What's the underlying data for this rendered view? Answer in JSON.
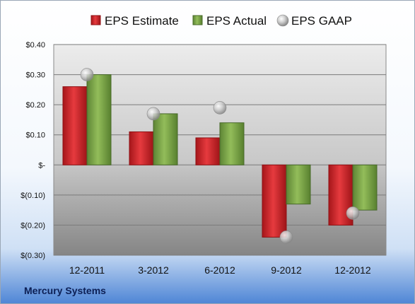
{
  "company": "Mercury Systems",
  "colors": {
    "estimate": "#d7262a",
    "estimate_dark": "#8f1114",
    "actual": "#7aa447",
    "actual_dark": "#48692a",
    "gaap": "#c5c5c5"
  },
  "chart_data": {
    "type": "bar",
    "title": "",
    "xlabel": "",
    "ylabel": "",
    "categories": [
      "12-2011",
      "3-2012",
      "6-2012",
      "9-2012",
      "12-2012"
    ],
    "series": [
      {
        "name": "EPS Estimate",
        "kind": "bar",
        "values": [
          0.26,
          0.11,
          0.09,
          -0.24,
          -0.2
        ]
      },
      {
        "name": "EPS Actual",
        "kind": "bar",
        "values": [
          0.3,
          0.17,
          0.14,
          -0.13,
          -0.15
        ]
      },
      {
        "name": "EPS GAAP",
        "kind": "marker",
        "values": [
          0.3,
          0.17,
          0.19,
          -0.24,
          -0.16
        ]
      }
    ],
    "ylim": [
      -0.3,
      0.4
    ],
    "yticks": [
      0.4,
      0.3,
      0.2,
      0.1,
      0,
      -0.1,
      -0.2,
      -0.3
    ],
    "ytick_labels": [
      "$0.40",
      "$0.30",
      "$0.20",
      "$0.10",
      "$-",
      "$(0.10)",
      "$(0.20)",
      "$(0.30)"
    ],
    "grid": true,
    "legend": "top"
  }
}
